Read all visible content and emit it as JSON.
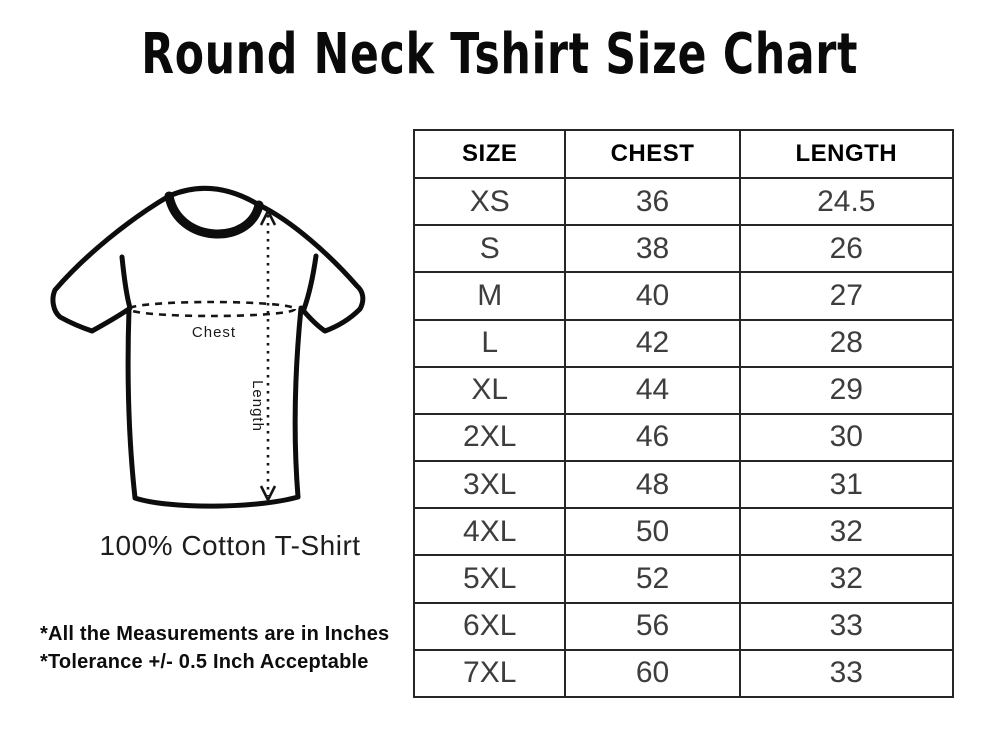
{
  "title": "Round Neck Tshirt Size Chart",
  "illustration": {
    "chest_label": "Chest",
    "length_label": "Length",
    "caption": "100% Cotton T-Shirt"
  },
  "notes": {
    "line1": "*All the Measurements are in Inches",
    "line2": "*Tolerance +/- 0.5 Inch Acceptable"
  },
  "colors": {
    "ink": "#0d0d0d",
    "table_border": "#262626",
    "cell_text": "#3d3d3d"
  },
  "chart_data": {
    "type": "table",
    "title": "Round Neck Tshirt Size Chart",
    "columns": [
      "SIZE",
      "CHEST",
      "LENGTH"
    ],
    "rows": [
      [
        "XS",
        "36",
        "24.5"
      ],
      [
        "S",
        "38",
        "26"
      ],
      [
        "M",
        "40",
        "27"
      ],
      [
        "L",
        "42",
        "28"
      ],
      [
        "XL",
        "44",
        "29"
      ],
      [
        "2XL",
        "46",
        "30"
      ],
      [
        "3XL",
        "48",
        "31"
      ],
      [
        "4XL",
        "50",
        "32"
      ],
      [
        "5XL",
        "52",
        "32"
      ],
      [
        "6XL",
        "56",
        "33"
      ],
      [
        "7XL",
        "60",
        "33"
      ]
    ]
  }
}
